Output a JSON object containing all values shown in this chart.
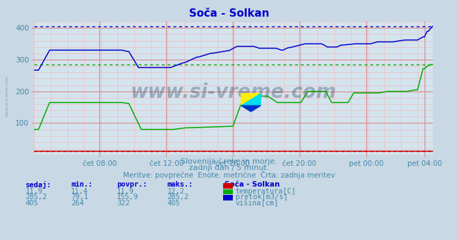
{
  "title": "Soča - Solkan",
  "title_color": "#0000cc",
  "fig_bg_color": "#c8d8e4",
  "plot_bg_color": "#d4e4ee",
  "xlabel_color": "#4488aa",
  "ylabel_color": "#4488aa",
  "grid_major_color": "#dd8888",
  "grid_minor_color": "#f0bbbb",
  "ylim": [
    0,
    420
  ],
  "xlim": [
    0,
    287
  ],
  "xtick_labels": [
    "čet 08:00",
    "čet 12:00",
    "čet 16:00",
    "čet 20:00",
    "pet 00:00",
    "pet 04:00"
  ],
  "xtick_positions": [
    47,
    95,
    143,
    191,
    239,
    281
  ],
  "ytick_positions": [
    100,
    200,
    300,
    400
  ],
  "ytick_labels": [
    "100",
    "200",
    "300",
    "400"
  ],
  "ref_line_blue_y": 405,
  "ref_line_green_y": 285.2,
  "ref_line_red_y": 11.9,
  "temp_color": "#cc0000",
  "flow_color": "#00aa00",
  "height_color": "#0000cc",
  "watermark": "www.si-vreme.com",
  "subtitle1": "Slovenija / reke in morje.",
  "subtitle2": "zadnji dan / 5 minut.",
  "subtitle3": "Meritve: povprečne  Enote: metrične  Črta: zadnja meritev",
  "subtitle_color": "#4488aa",
  "table_headers": [
    "sedaj:",
    "min.:",
    "povpr.:",
    "maks.:"
  ],
  "table_header_color": "#0000cc",
  "table_data_color": "#4488aa",
  "table_location": "Soča - Solkan",
  "table_rows": [
    {
      "sedaj": "11,9",
      "min": "11,4",
      "povpr": "11,9",
      "maks": "12,2",
      "label": "temperatura[C]",
      "color": "#cc0000"
    },
    {
      "sedaj": "285,2",
      "min": "79,1",
      "povpr": "155,9",
      "maks": "285,2",
      "label": "pretok[m3/s]",
      "color": "#00aa00"
    },
    {
      "sedaj": "405",
      "min": "264",
      "povpr": "322",
      "maks": "405",
      "label": "višina[cm]",
      "color": "#0000cc"
    }
  ],
  "border_color": "#cc0000",
  "left_label": "www.si-vreme.com"
}
